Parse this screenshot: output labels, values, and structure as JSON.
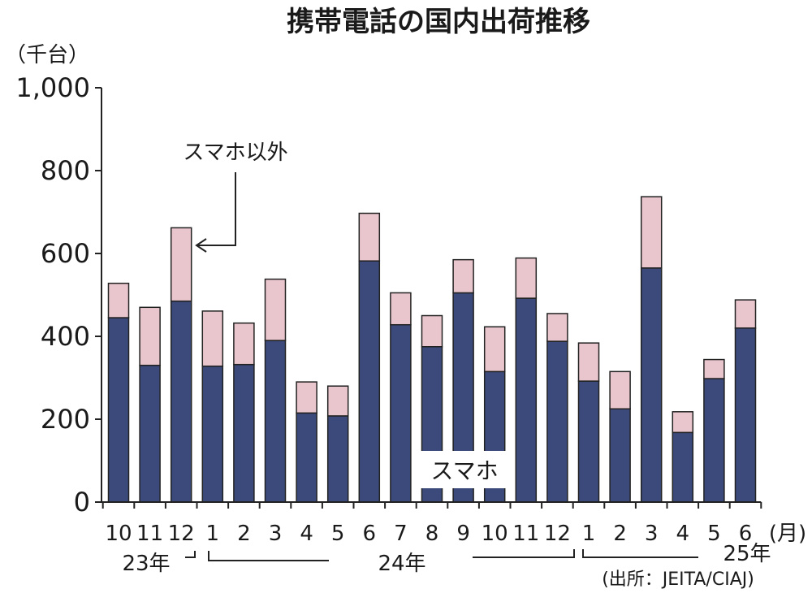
{
  "chart_data": {
    "type": "bar",
    "stacked": true,
    "title": "携帯電話の国内出荷推移",
    "ylabel": "（千台）",
    "xunit": "(月)",
    "source": "(出所：JEITA/CIAJ)",
    "ylim": [
      0,
      1000
    ],
    "yticks": [
      "0",
      "200",
      "400",
      "600",
      "800",
      "1,000"
    ],
    "ytick_values": [
      0,
      200,
      400,
      600,
      800,
      1000
    ],
    "categories": [
      "10",
      "11",
      "12",
      "1",
      "2",
      "3",
      "4",
      "5",
      "6",
      "7",
      "8",
      "9",
      "10",
      "11",
      "12",
      "1",
      "2",
      "3",
      "4",
      "5",
      "6"
    ],
    "years": [
      "23年",
      "24年",
      "25年"
    ],
    "series": [
      {
        "name": "スマホ",
        "color": "#3b4a7a",
        "values": [
          445,
          330,
          485,
          328,
          332,
          390,
          215,
          208,
          582,
          428,
          375,
          505,
          315,
          492,
          388,
          292,
          225,
          565,
          168,
          298,
          420
        ]
      },
      {
        "name": "スマホ以外",
        "color": "#e9c6cd",
        "values": [
          83,
          140,
          177,
          133,
          100,
          148,
          75,
          72,
          115,
          77,
          75,
          80,
          108,
          97,
          67,
          92,
          90,
          172,
          50,
          46,
          68
        ]
      }
    ],
    "grid": false,
    "legend": "in-chart annotations"
  }
}
